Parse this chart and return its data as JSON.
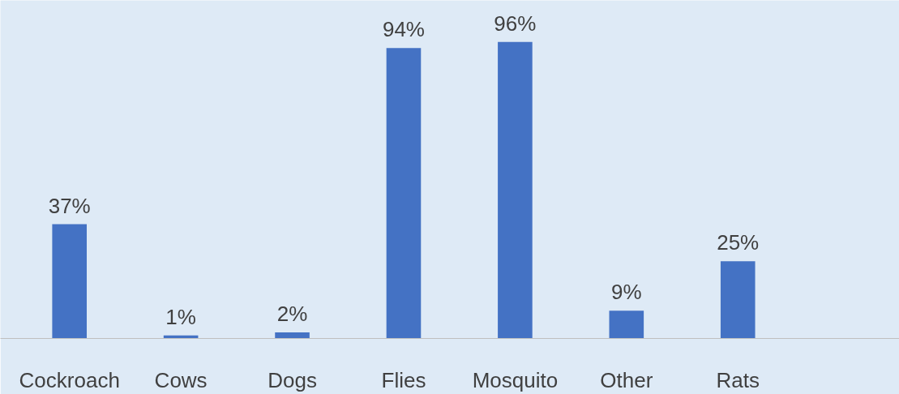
{
  "chart_data": {
    "type": "bar",
    "categories": [
      "Cockroach",
      "Cows",
      "Dogs",
      "Flies",
      "Mosquito",
      "Other",
      "Rats"
    ],
    "values": [
      37,
      1,
      2,
      94,
      96,
      9,
      25
    ],
    "value_labels": [
      "37%",
      "1%",
      "2%",
      "94%",
      "96%",
      "9%",
      "25%"
    ],
    "color": "#4472c4"
  }
}
